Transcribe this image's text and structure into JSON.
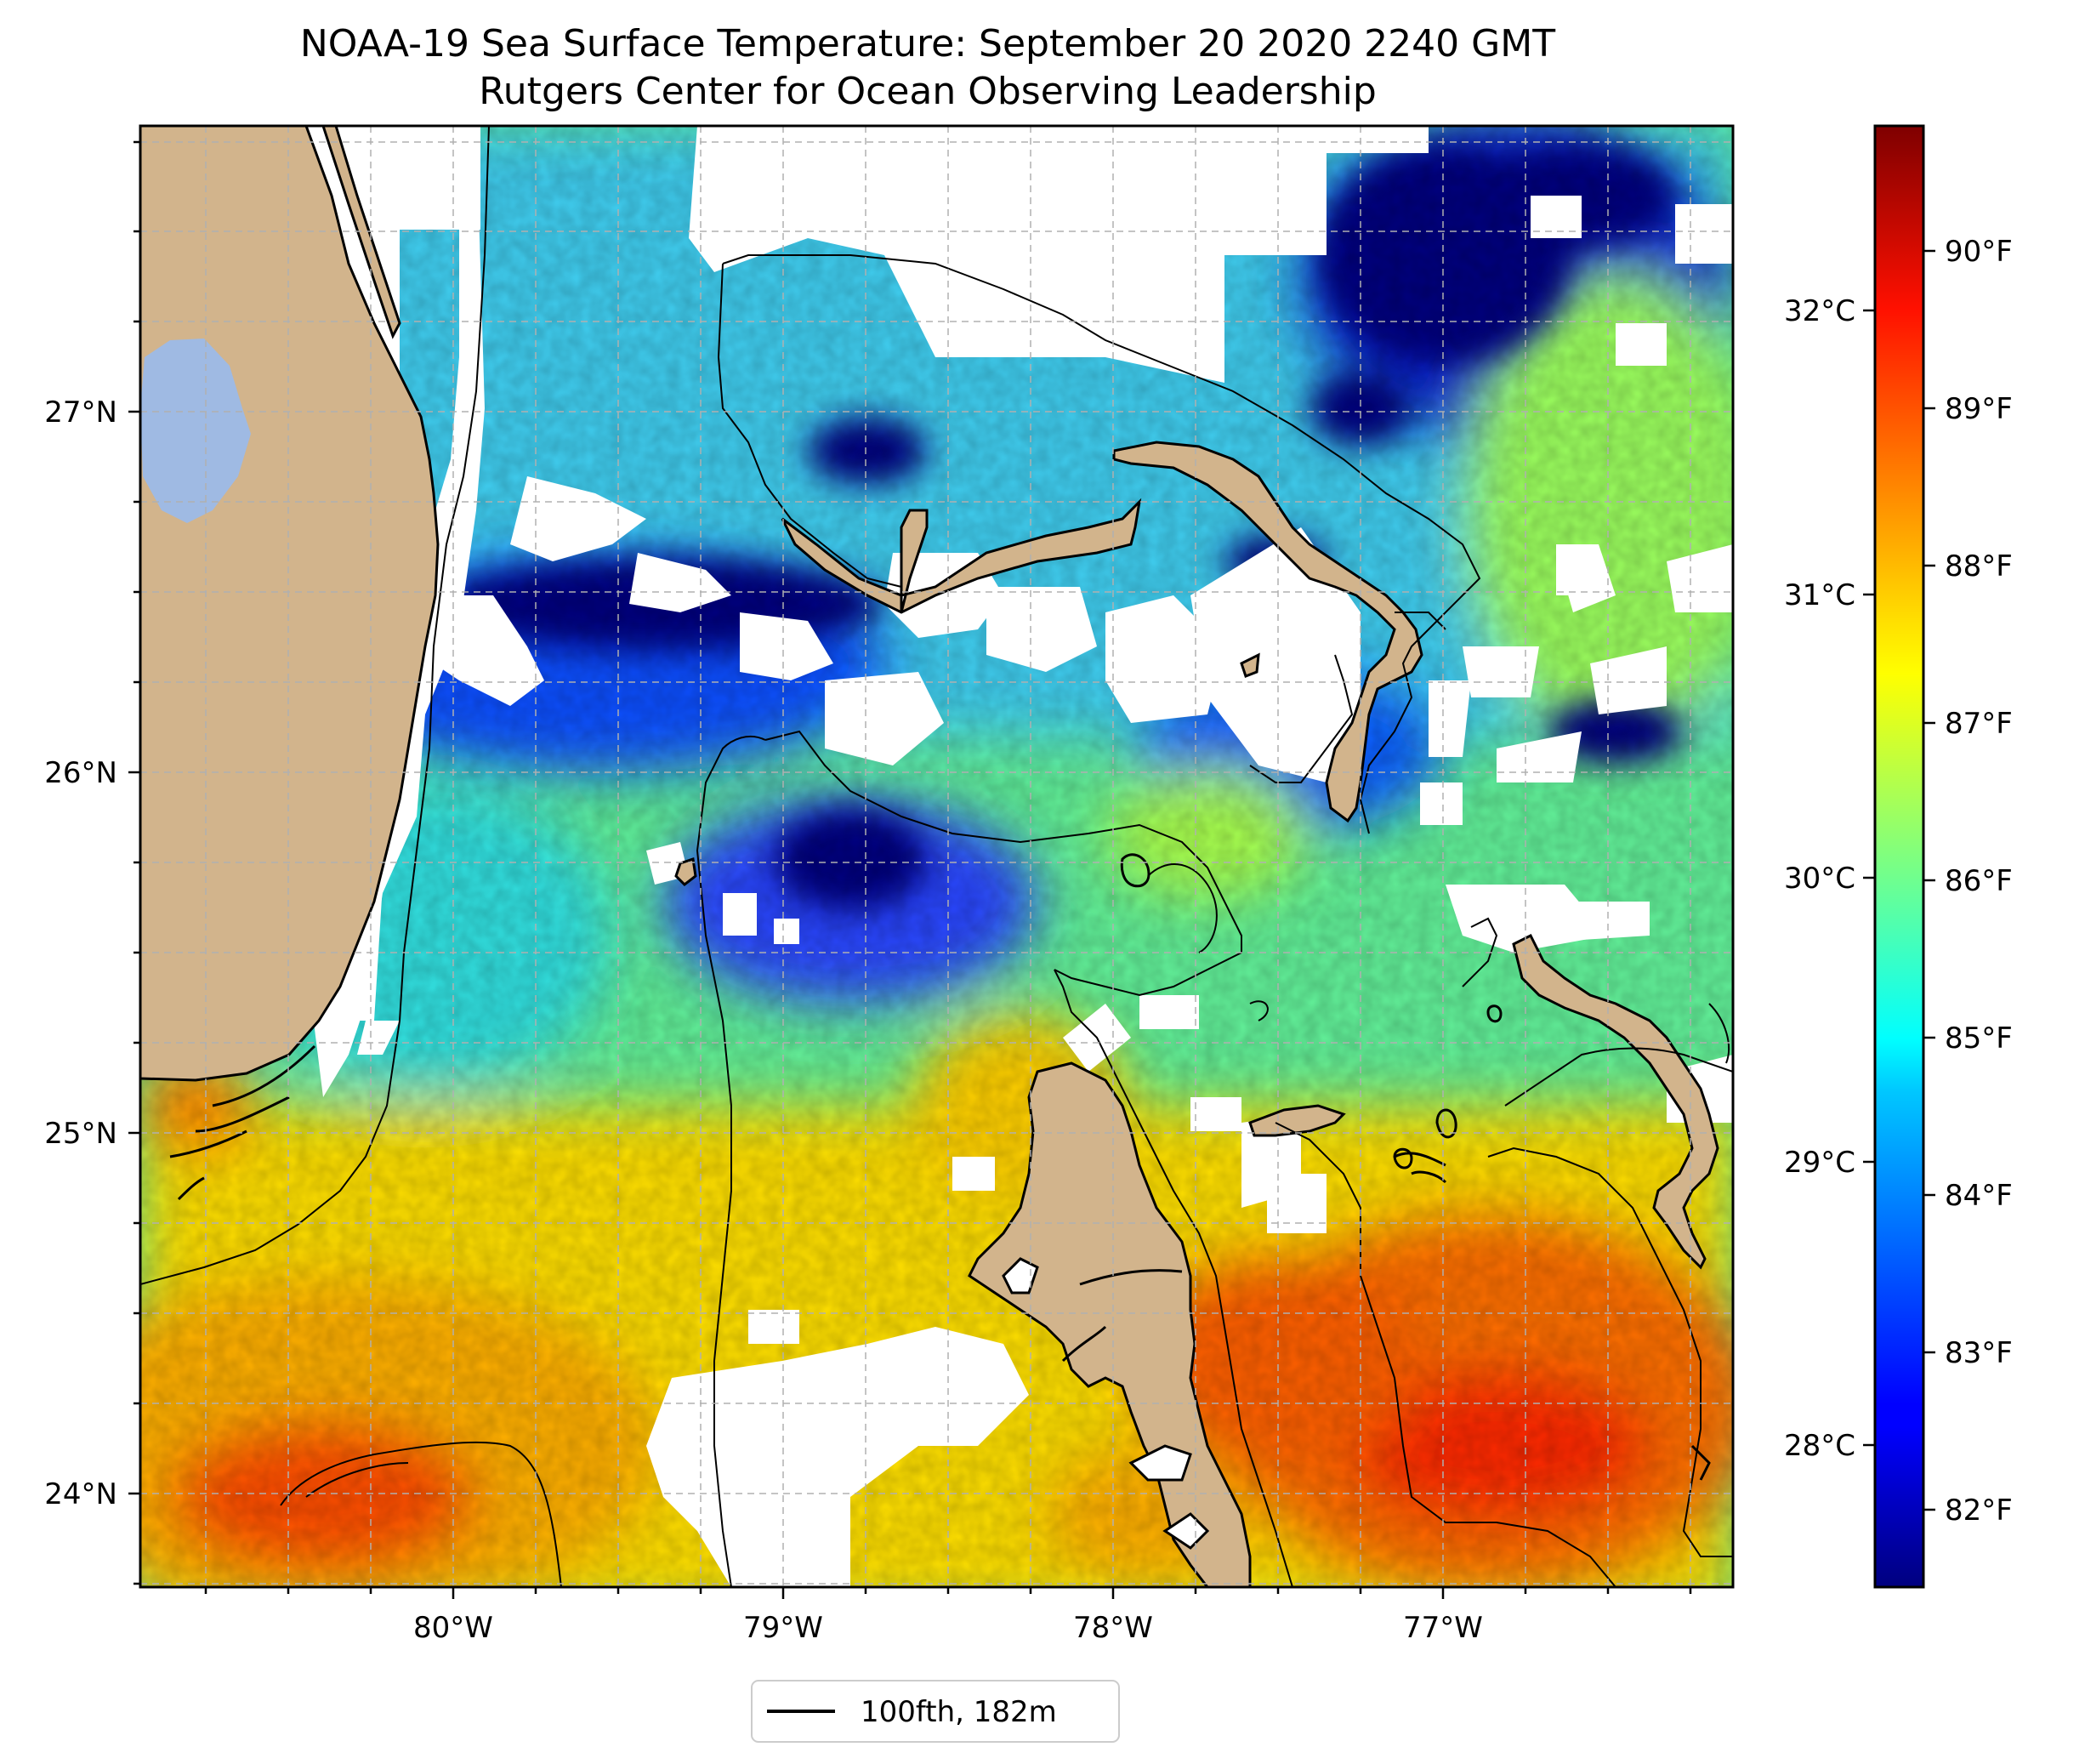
{
  "title": "NOAA-19 Sea Surface Temperature: September 20 2020 2240 GMT",
  "subtitle": "Rutgers Center for Ocean Observing Leadership",
  "colors": {
    "land": "#d2b48c",
    "lake": "#9fbae3",
    "coastline": "#000000",
    "gridline": "#b0b0b0",
    "no_data": "#ffffff"
  },
  "map": {
    "lon_ticks": [
      "80°W",
      "79°W",
      "78°W",
      "77°W"
    ],
    "lat_ticks": [
      "27°N",
      "26°N",
      "25°N",
      "24°N"
    ],
    "lon_range": [
      -81.0,
      -76.15
    ],
    "lat_range": [
      23.75,
      27.8
    ],
    "colormap": "jet",
    "grid": true
  },
  "colorbar": {
    "left_ticks": [
      "32°C",
      "31°C",
      "30°C",
      "29°C",
      "28°C"
    ],
    "right_ticks": [
      "90°F",
      "89°F",
      "88°F",
      "87°F",
      "86°F",
      "85°F",
      "84°F",
      "83°F",
      "82°F"
    ],
    "range_f": [
      81.5,
      90.8
    ]
  },
  "legend": {
    "label": "100fth, 182m"
  }
}
